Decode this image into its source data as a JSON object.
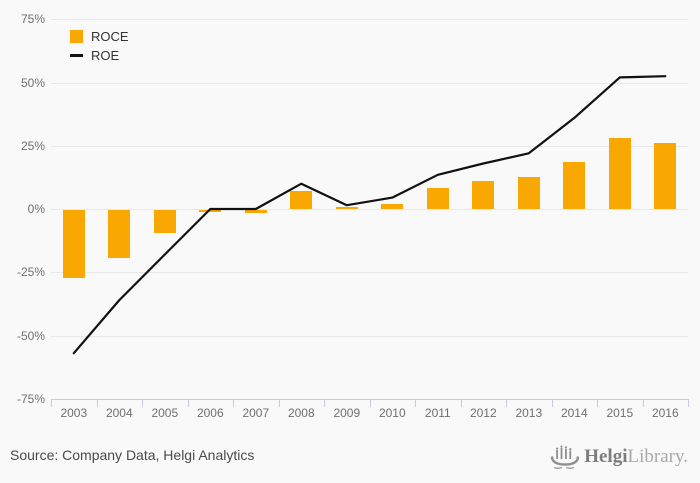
{
  "chart_data": {
    "type": "bar",
    "subtype": "bar-and-line-combo",
    "categories": [
      "2003",
      "2004",
      "2005",
      "2006",
      "2007",
      "2008",
      "2009",
      "2010",
      "2011",
      "2012",
      "2013",
      "2014",
      "2015",
      "2016"
    ],
    "series": [
      {
        "name": "ROCE",
        "render": "bar",
        "color": "#F8A800",
        "values": [
          -27,
          -19,
          -9,
          -0.7,
          -1,
          7,
          0.5,
          2,
          8.5,
          11,
          12.5,
          18.5,
          28,
          26
        ]
      },
      {
        "name": "ROE",
        "render": "line",
        "color": "#111111",
        "values": [
          -57,
          -36,
          -18,
          0,
          0,
          10,
          1.5,
          4.5,
          13.5,
          18,
          22,
          36,
          52,
          52.5
        ]
      }
    ],
    "title": "",
    "xlabel": "",
    "ylabel": "",
    "ylim": [
      -75,
      75
    ],
    "yticks": [
      {
        "value": 75,
        "label": "75%"
      },
      {
        "value": 50,
        "label": "50%"
      },
      {
        "value": 25,
        "label": "25%"
      },
      {
        "value": 0,
        "label": "0%"
      },
      {
        "value": -25,
        "label": "-25%"
      },
      {
        "value": -50,
        "label": "-50%"
      },
      {
        "value": -75,
        "label": "-75%"
      }
    ],
    "grid": "horizontal-only",
    "legend_position": "top-left",
    "gridline_color": "#e8e8e8",
    "axis_color": "#c5cadf",
    "tick_label_color": "#6f6f6f"
  },
  "legend": {
    "items": [
      {
        "label": "ROCE",
        "swatch": "orange-square"
      },
      {
        "label": "ROE",
        "swatch": "black-dash"
      }
    ]
  },
  "footer": {
    "source": "Source: Company Data, Helgi Analytics",
    "logo": {
      "bold": "Helgi",
      "light": "Library."
    }
  },
  "colors": {
    "background": "#f9f9f9",
    "bar": "#F8A800",
    "line": "#111111",
    "logo_gray": "#8f8f8f"
  }
}
